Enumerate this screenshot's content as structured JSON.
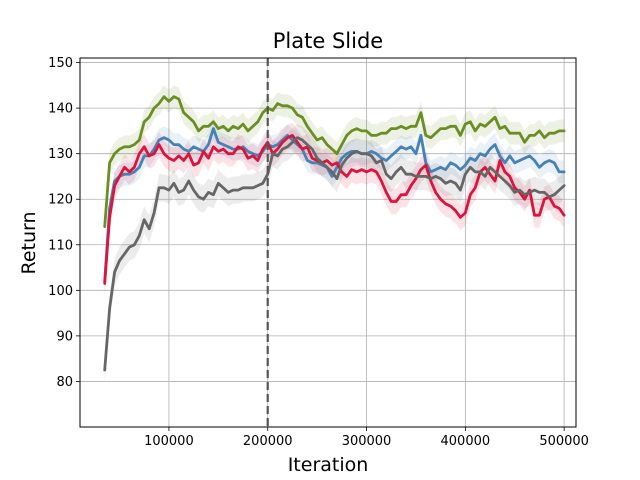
{
  "chart_data": {
    "type": "line",
    "title": "Plate Slide",
    "xlabel": "Iteration",
    "ylabel": "Return",
    "xlim": [
      10000,
      512000
    ],
    "ylim": [
      70,
      151
    ],
    "xticks": [
      100000,
      200000,
      300000,
      400000,
      500000
    ],
    "xtick_labels": [
      "100000",
      "200000",
      "300000",
      "400000",
      "500000"
    ],
    "yticks": [
      80,
      90,
      100,
      110,
      120,
      130,
      140,
      150
    ],
    "ytick_labels": [
      "80",
      "90",
      "100",
      "110",
      "120",
      "130",
      "140",
      "150"
    ],
    "grid": true,
    "legend": "none",
    "vline": {
      "x": 200000,
      "style": "dashed",
      "color": "#555555"
    },
    "x": [
      35000,
      40000,
      45000,
      50000,
      55000,
      60000,
      65000,
      70000,
      75000,
      80000,
      85000,
      90000,
      95000,
      100000,
      105000,
      110000,
      115000,
      120000,
      125000,
      130000,
      135000,
      140000,
      145000,
      150000,
      155000,
      160000,
      165000,
      170000,
      175000,
      180000,
      185000,
      190000,
      195000,
      200000,
      205000,
      210000,
      215000,
      220000,
      225000,
      230000,
      235000,
      240000,
      245000,
      250000,
      255000,
      260000,
      265000,
      270000,
      275000,
      280000,
      285000,
      290000,
      295000,
      300000,
      305000,
      310000,
      315000,
      320000,
      325000,
      330000,
      335000,
      340000,
      345000,
      350000,
      355000,
      360000,
      365000,
      370000,
      375000,
      380000,
      385000,
      390000,
      395000,
      400000,
      405000,
      410000,
      415000,
      420000,
      425000,
      430000,
      435000,
      440000,
      445000,
      450000,
      455000,
      460000,
      465000,
      470000,
      475000,
      480000,
      485000,
      490000,
      495000,
      500000
    ],
    "series": [
      {
        "color": "#6b8e23",
        "band": 2.5,
        "values": [
          114,
          128,
          130,
          131,
          131.5,
          131.5,
          132,
          133,
          137,
          138,
          140,
          141,
          142.5,
          141.5,
          142.5,
          142,
          139,
          138,
          137,
          135,
          136,
          136,
          137,
          135.5,
          136,
          135,
          136,
          135.5,
          136.5,
          135,
          136,
          137,
          139,
          140,
          139.5,
          141,
          140.5,
          140.5,
          140,
          138.5,
          138,
          136,
          134.5,
          133,
          133.5,
          132,
          131,
          130,
          132,
          134,
          135,
          135.5,
          135,
          135,
          134,
          134,
          134.5,
          134.5,
          135.5,
          135.5,
          136,
          135.5,
          136,
          136,
          139,
          134,
          133.5,
          134.5,
          135.5,
          135.5,
          136,
          136,
          134,
          136.5,
          137,
          135,
          136.5,
          136,
          137,
          138,
          135.5,
          136,
          134.5,
          134.5,
          134.5,
          132.5,
          134,
          134,
          135,
          133.5,
          134.5,
          134.5,
          135,
          135
        ]
      },
      {
        "color": "#4682b4",
        "band": 2.5,
        "values": [
          102,
          118,
          124,
          125,
          125.5,
          125.5,
          126,
          127,
          129.5,
          129.5,
          131,
          133,
          133.5,
          133,
          132,
          132,
          131,
          130.5,
          131.5,
          131,
          130.5,
          132,
          135.5,
          132.5,
          132,
          131.5,
          131,
          131,
          131.5,
          130.5,
          130,
          129.5,
          130.5,
          132,
          131.5,
          132,
          133,
          134,
          133,
          132,
          131,
          128.5,
          128,
          128,
          127.5,
          127,
          125,
          127,
          129,
          130,
          130.5,
          130.5,
          130,
          130,
          130.5,
          130,
          129,
          128.5,
          129.5,
          130.5,
          131.5,
          131,
          131.5,
          130,
          134,
          128,
          126,
          126.5,
          127,
          126.5,
          128,
          127.5,
          126.5,
          127.5,
          129,
          128.5,
          130,
          129.5,
          131,
          132,
          129.5,
          128,
          129.5,
          128,
          128.5,
          129,
          129.5,
          128.5,
          127,
          128,
          128.5,
          128,
          126,
          126
        ]
      },
      {
        "color": "#dc143c",
        "band": 2.8,
        "values": [
          101.5,
          116,
          123,
          125,
          127,
          126,
          127,
          130,
          131.5,
          129.5,
          130,
          132,
          130,
          129,
          128.5,
          129.5,
          128.5,
          130,
          127.5,
          128,
          130.5,
          129,
          131.5,
          130.5,
          131,
          130,
          130,
          131.5,
          131,
          129,
          129.5,
          128.5,
          131,
          132.5,
          130,
          131,
          132.5,
          133.5,
          134,
          132.5,
          131,
          131.5,
          129,
          128.5,
          128,
          128.5,
          127.5,
          128,
          126,
          125,
          126.5,
          126,
          126.5,
          126,
          126.5,
          126,
          124,
          121.5,
          119.5,
          119.5,
          121,
          121,
          123,
          124.5,
          126.5,
          127.5,
          124,
          121.5,
          120,
          119,
          118.5,
          117.5,
          116,
          117,
          121,
          122.5,
          126,
          127,
          125.5,
          124,
          128.5,
          126,
          125,
          122.5,
          121.5,
          120,
          122,
          116.5,
          116.5,
          120,
          120.5,
          118.5,
          118,
          116.5
        ]
      },
      {
        "color": "#666666",
        "band": 3,
        "values": [
          82.5,
          96,
          104,
          106.5,
          108,
          109.5,
          110,
          112,
          115.5,
          113.5,
          117,
          122.5,
          122.5,
          122,
          123.5,
          121.5,
          122,
          124,
          122,
          120.5,
          120,
          121.5,
          121,
          123.5,
          122.5,
          121.5,
          122,
          122,
          122.5,
          122.5,
          122.5,
          123,
          123.5,
          125.5,
          130,
          129.5,
          131,
          131.5,
          132.5,
          133.5,
          133,
          132,
          131,
          129,
          128,
          127,
          126,
          124.5,
          127.5,
          129,
          130,
          130.5,
          130,
          130,
          129.5,
          128,
          128.5,
          125.5,
          124.5,
          126,
          127,
          125.5,
          125.5,
          125,
          125,
          125,
          124.5,
          125,
          124.5,
          123.5,
          124,
          123.5,
          122,
          125.5,
          127,
          126,
          126,
          125,
          127,
          126,
          125,
          124,
          123,
          121.5,
          122,
          121,
          121.5,
          122,
          121.5,
          121.5,
          120.5,
          121,
          122,
          123
        ]
      }
    ]
  }
}
